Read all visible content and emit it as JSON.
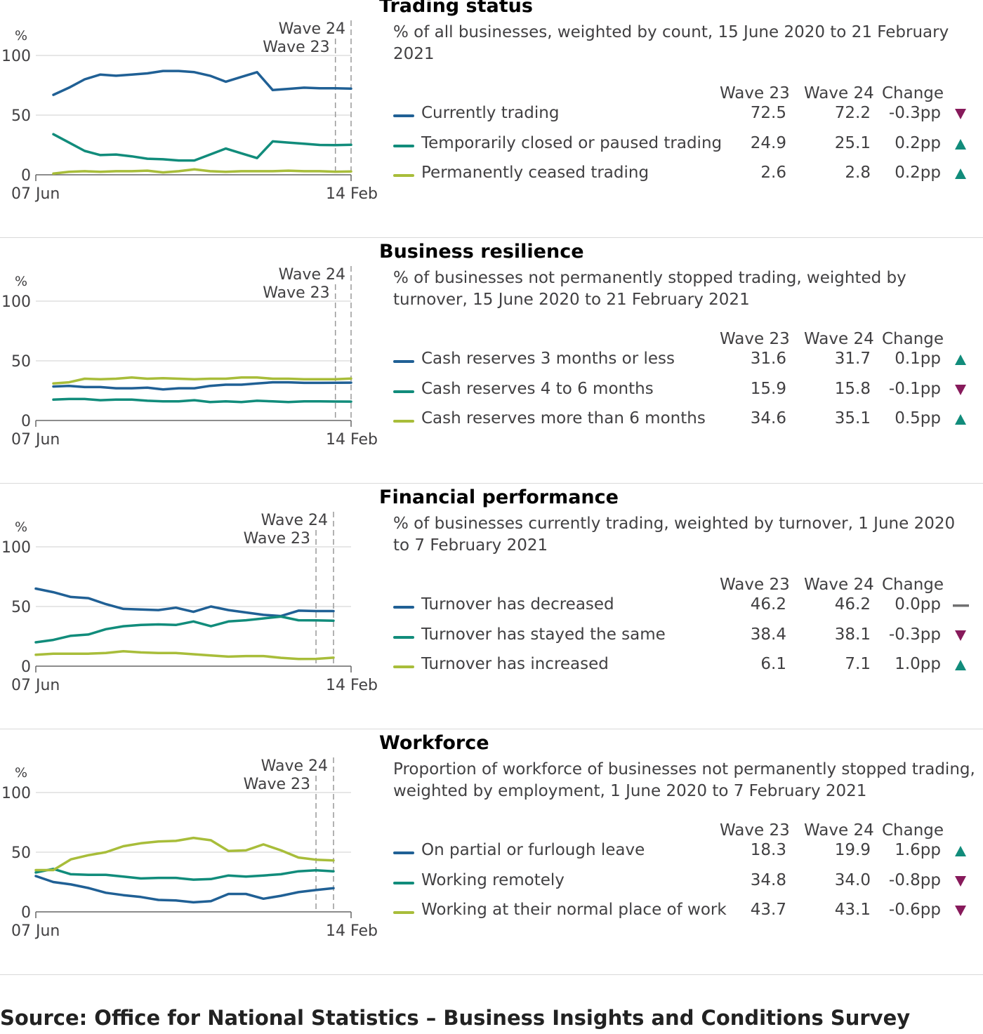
{
  "headers": {
    "wave_a": "Wave 23",
    "wave_b": "Wave 24",
    "change": "Change"
  },
  "colors": {
    "series1": "#206095",
    "series2": "#118c7b",
    "series3": "#a8bd3a",
    "up": "#118c7b",
    "down": "#871a5b",
    "flat": "#707071"
  },
  "source": "Source: Office for National Statistics – Business Insights and Conditions Survey",
  "chart_data": [
    {
      "type": "line",
      "title": "Trading status",
      "subtitle": "% of all businesses, weighted by count, 15 June 2020 to 21 February 2021",
      "yunit": "%",
      "ylim": [
        0,
        100
      ],
      "yticks": [
        "0",
        "50",
        "100"
      ],
      "xstart_label": "07 Jun",
      "xend_label": "14 Feb",
      "markers": [
        {
          "label": "Wave 23",
          "index": 18
        },
        {
          "label": "Wave 24",
          "index": 19
        }
      ],
      "series": [
        {
          "name": "Currently trading",
          "wave_a": "72.5",
          "wave_b": "72.2",
          "change": "-0.3pp",
          "direction": "down",
          "values": [
            67,
            73,
            80,
            84,
            83,
            84,
            85,
            87,
            87,
            86,
            83,
            78,
            82,
            86,
            71,
            72,
            73,
            72.5,
            72.5,
            72.2
          ]
        },
        {
          "name": "Temporarily closed or paused trading",
          "wave_a": "24.9",
          "wave_b": "25.1",
          "change": "0.2pp",
          "direction": "up",
          "values": [
            34,
            27,
            20,
            16.5,
            17,
            15.5,
            13.5,
            13,
            12,
            12,
            17,
            22,
            18,
            14,
            28,
            27,
            26,
            25,
            24.9,
            25.1
          ]
        },
        {
          "name": "Permanently ceased trading",
          "wave_a": "2.6",
          "wave_b": "2.8",
          "change": "0.2pp",
          "direction": "up",
          "values": [
            1,
            2.5,
            3,
            2.5,
            3,
            3,
            3.5,
            2,
            3,
            4.5,
            3,
            2.5,
            3,
            3,
            3,
            3.5,
            3,
            3,
            2.6,
            2.8
          ]
        }
      ]
    },
    {
      "type": "line",
      "title": "Business resilience",
      "subtitle": "% of businesses not permanently stopped trading, weighted by turnover, 15 June 2020 to 21 February 2021",
      "yunit": "%",
      "ylim": [
        0,
        100
      ],
      "yticks": [
        "0",
        "50",
        "100"
      ],
      "xstart_label": "07 Jun",
      "xend_label": "14 Feb",
      "markers": [
        {
          "label": "Wave 23",
          "index": 18
        },
        {
          "label": "Wave 24",
          "index": 19
        }
      ],
      "series": [
        {
          "name": "Cash reserves 3 months or less",
          "wave_a": "31.6",
          "wave_b": "31.7",
          "change": "0.1pp",
          "direction": "up",
          "values": [
            28.5,
            29,
            28,
            28,
            27,
            27,
            27.5,
            26,
            27,
            27,
            29,
            30,
            30,
            31,
            32,
            32,
            31.5,
            31.5,
            31.6,
            31.7
          ]
        },
        {
          "name": "Cash reserves 4 to 6 months",
          "wave_a": "15.9",
          "wave_b": "15.8",
          "change": "-0.1pp",
          "direction": "down",
          "values": [
            17.5,
            18,
            18,
            17,
            17.5,
            17.5,
            16.5,
            16,
            16,
            17,
            15.5,
            16,
            15.5,
            16.5,
            16,
            15.5,
            16,
            16,
            15.9,
            15.8
          ]
        },
        {
          "name": "Cash reserves more than 6 months",
          "wave_a": "34.6",
          "wave_b": "35.1",
          "change": "0.5pp",
          "direction": "up",
          "values": [
            31,
            32,
            35,
            34.5,
            35,
            36,
            35,
            35.5,
            35,
            34.5,
            35,
            35,
            36,
            36,
            35,
            35,
            34.5,
            34.5,
            34.6,
            35.1
          ]
        }
      ]
    },
    {
      "type": "line",
      "title": "Financial performance",
      "subtitle": "% of businesses currently trading, weighted by turnover, 1 June 2020 to 7 February 2021",
      "yunit": "%",
      "ylim": [
        0,
        100
      ],
      "yticks": [
        "0",
        "50",
        "100"
      ],
      "xstart_label": "07 Jun",
      "xend_label": "14 Feb",
      "markers": [
        {
          "label": "Wave 23",
          "index": 16
        },
        {
          "label": "Wave 24",
          "index": 17
        }
      ],
      "series": [
        {
          "name": "Turnover has decreased",
          "wave_a": "46.2",
          "wave_b": "46.2",
          "change": "0.0pp",
          "direction": "flat",
          "values": [
            65,
            62,
            58,
            57,
            52,
            48,
            47.5,
            47,
            49,
            45.5,
            50,
            47,
            45,
            43,
            42,
            46.5,
            46.2,
            46.2
          ]
        },
        {
          "name": "Turnover has stayed the same",
          "wave_a": "38.4",
          "wave_b": "38.1",
          "change": "-0.3pp",
          "direction": "down",
          "values": [
            20,
            22,
            25.5,
            26.5,
            31,
            33.5,
            34.5,
            35,
            34.5,
            37.5,
            33.5,
            37.5,
            38.5,
            40,
            41.5,
            38.5,
            38.4,
            38.1
          ]
        },
        {
          "name": "Turnover has increased",
          "wave_a": "6.1",
          "wave_b": "7.1",
          "change": "1.0pp",
          "direction": "up",
          "values": [
            9.5,
            10.5,
            10.5,
            10.5,
            11,
            12.5,
            11.5,
            11,
            11,
            10,
            9,
            8,
            8.5,
            8.5,
            7,
            6,
            6.1,
            7.1
          ]
        }
      ]
    },
    {
      "type": "line",
      "title": "Workforce",
      "subtitle": "Proportion of workforce of businesses not permanently stopped trading, weighted by employment, 1 June 2020 to 7 February 2021",
      "yunit": "%",
      "ylim": [
        0,
        100
      ],
      "yticks": [
        "0",
        "50",
        "100"
      ],
      "xstart_label": "07 Jun",
      "xend_label": "14 Feb",
      "markers": [
        {
          "label": "Wave 23",
          "index": 16
        },
        {
          "label": "Wave 24",
          "index": 17
        }
      ],
      "series": [
        {
          "name": "On partial or furlough leave",
          "wave_a": "18.3",
          "wave_b": "19.9",
          "change": "1.6pp",
          "direction": "up",
          "values": [
            30,
            25,
            23,
            20,
            16,
            14,
            12.5,
            10,
            9.5,
            8,
            9,
            15,
            15,
            11,
            13.5,
            16.5,
            18.3,
            19.9
          ]
        },
        {
          "name": "Working remotely",
          "wave_a": "34.8",
          "wave_b": "34.0",
          "change": "-0.8pp",
          "direction": "down",
          "values": [
            33,
            36,
            31.5,
            31,
            31,
            29.5,
            28,
            28.5,
            28.5,
            27,
            27.5,
            30.5,
            29.5,
            30.5,
            31.5,
            34,
            34.8,
            34
          ]
        },
        {
          "name": "Working at their normal place of work",
          "wave_a": "43.7",
          "wave_b": "43.1",
          "change": "-0.6pp",
          "direction": "down",
          "values": [
            35,
            35,
            44,
            47.5,
            50,
            55,
            57.5,
            59,
            59.5,
            62,
            60,
            51,
            51.5,
            56.5,
            51.5,
            45.5,
            43.7,
            43.1
          ]
        }
      ]
    }
  ]
}
